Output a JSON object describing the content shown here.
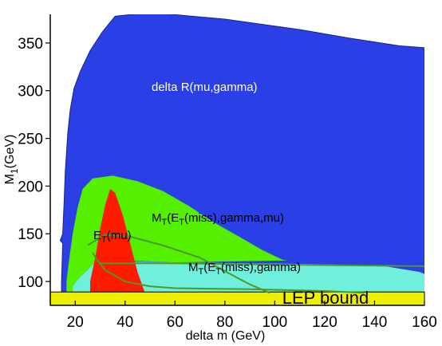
{
  "chart_data": {
    "type": "area",
    "title": "",
    "xlabel": "delta m (GeV)",
    "ylabel_main": "M",
    "ylabel_sub": "1",
    "ylabel_unit": "(GeV)",
    "xlim": [
      10,
      160
    ],
    "ylim": [
      75,
      380
    ],
    "x_ticks": [
      20,
      40,
      60,
      80,
      100,
      120,
      140,
      160
    ],
    "y_ticks": [
      100,
      150,
      200,
      250,
      300,
      350
    ],
    "grid": false,
    "colors": {
      "delta_r": "#2a3fe6",
      "mt_gamma_mu": "#55f000",
      "mt_gamma": "#70f0dc",
      "et_mu": "#ff1a00",
      "lep": "#eef000",
      "outline": "#000000",
      "line": "#4a9a2a"
    },
    "regions": [
      {
        "key": "delta_r",
        "label": "delta R(mu,gamma)",
        "points": [
          [
            14.5,
            88
          ],
          [
            14.5,
            100
          ],
          [
            15,
            140
          ],
          [
            14,
            143
          ],
          [
            15,
            150
          ],
          [
            15.5,
            180
          ],
          [
            16,
            215
          ],
          [
            17,
            255
          ],
          [
            18,
            280
          ],
          [
            19.5,
            302
          ],
          [
            22,
            320
          ],
          [
            26,
            342
          ],
          [
            31,
            362
          ],
          [
            36,
            378
          ],
          [
            50,
            382
          ],
          [
            80,
            375
          ],
          [
            110,
            364
          ],
          [
            130,
            355
          ],
          [
            150,
            347
          ],
          [
            160,
            345
          ],
          [
            160,
            88
          ]
        ]
      },
      {
        "key": "mt_gamma_mu",
        "label_main": "M",
        "label_sub": "T",
        "label_tail_1": "(E",
        "label_sub_2": "T",
        "label_tail_2": "(miss),gamma,mu)",
        "points": [
          [
            16.5,
            88
          ],
          [
            16.5,
            100
          ],
          [
            17.5,
            122
          ],
          [
            19,
            150
          ],
          [
            21,
            178
          ],
          [
            23,
            197
          ],
          [
            27,
            208
          ],
          [
            35,
            211
          ],
          [
            45,
            205
          ],
          [
            55,
            195
          ],
          [
            65,
            180
          ],
          [
            75,
            163
          ],
          [
            85,
            148
          ],
          [
            95,
            133
          ],
          [
            103,
            123
          ],
          [
            105,
            122
          ],
          [
            60,
            120
          ],
          [
            40,
            122
          ],
          [
            30,
            122
          ],
          [
            27,
            118
          ],
          [
            25,
            112
          ],
          [
            22,
            105
          ],
          [
            19,
            95
          ],
          [
            19,
            88
          ]
        ]
      },
      {
        "key": "mt_gamma",
        "label_main": "M",
        "label_sub": "T",
        "label_tail_1": "(E",
        "label_sub_2": "T",
        "label_tail_2": "(miss),gamma)",
        "points": [
          [
            19,
            88
          ],
          [
            19,
            95
          ],
          [
            22,
            105
          ],
          [
            25,
            112
          ],
          [
            27,
            118
          ],
          [
            30,
            121
          ],
          [
            40,
            121
          ],
          [
            60,
            120
          ],
          [
            90,
            119
          ],
          [
            120,
            118
          ],
          [
            144,
            116
          ],
          [
            158,
            110
          ],
          [
            160,
            108
          ],
          [
            160,
            88
          ]
        ]
      },
      {
        "key": "et_mu",
        "label_main": "E",
        "label_sub": "T",
        "label_tail_1": "(mu)",
        "points": [
          [
            26,
            88
          ],
          [
            26,
            100
          ],
          [
            28,
            125
          ],
          [
            30,
            155
          ],
          [
            32,
            180
          ],
          [
            34,
            197
          ],
          [
            36,
            193
          ],
          [
            39,
            170
          ],
          [
            42,
            140
          ],
          [
            45,
            110
          ],
          [
            47,
            95
          ],
          [
            48,
            88
          ]
        ]
      }
    ],
    "lines": [
      {
        "points": [
          [
            25,
            138
          ],
          [
            32,
            149
          ],
          [
            42,
            147
          ],
          [
            55,
            138
          ],
          [
            70,
            125
          ],
          [
            82,
            108
          ],
          [
            90,
            97
          ],
          [
            98,
            88
          ]
        ]
      },
      {
        "points": [
          [
            27,
            130
          ],
          [
            29,
            122
          ],
          [
            32,
            112
          ],
          [
            40,
            100
          ],
          [
            50,
            95
          ],
          [
            60,
            93
          ],
          [
            90,
            92
          ],
          [
            120,
            90
          ],
          [
            136,
            88
          ]
        ]
      },
      {
        "points": [
          [
            30,
            119
          ],
          [
            60,
            119
          ],
          [
            90,
            118
          ],
          [
            125,
            117
          ],
          [
            160,
            116
          ]
        ]
      }
    ],
    "lep_bound": {
      "label": "LEP bound",
      "ymin": 75,
      "ymax": 89
    }
  }
}
